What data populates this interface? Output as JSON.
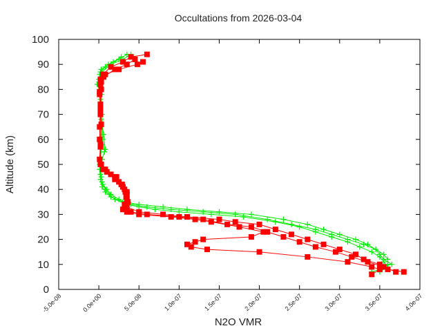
{
  "chart_data": {
    "type": "scatter",
    "title": "Occultations from 2026-03-04",
    "xlabel": "N2O VMR",
    "ylabel": "Altitude (km)",
    "xlim": [
      -5e-08,
      4e-07
    ],
    "ylim": [
      0,
      100
    ],
    "xticks": [
      "-5.0e-08",
      "0.0e+00",
      "5.0e-08",
      "1.0e-07",
      "1.5e-07",
      "2.0e-07",
      "2.5e-07",
      "3.0e-07",
      "3.5e-07",
      "4.0e-07"
    ],
    "xtick_values": [
      -5e-08,
      0,
      5e-08,
      1e-07,
      1.5e-07,
      2e-07,
      2.5e-07,
      3e-07,
      3.5e-07,
      4e-07
    ],
    "yticks": [
      "0",
      "10",
      "20",
      "30",
      "40",
      "50",
      "60",
      "70",
      "80",
      "90",
      "100"
    ],
    "ytick_values": [
      0,
      10,
      20,
      30,
      40,
      50,
      60,
      70,
      80,
      90,
      100
    ],
    "grid": false,
    "legend": "none",
    "colors": {
      "green": "#00ee00",
      "red": "#ff0000"
    },
    "series": [
      {
        "marker": "plus",
        "color": "#00ee00",
        "altitude": [
          94,
          92,
          90,
          88,
          86,
          82,
          78,
          70,
          60,
          55,
          50,
          45,
          42,
          40,
          38,
          36,
          34,
          33,
          32,
          31,
          30,
          28,
          26,
          24,
          22,
          20,
          18,
          16,
          14,
          12,
          10,
          8,
          7
        ],
        "vmr": [
          3.5e-08,
          2.5e-08,
          1.2e-08,
          3e-09,
          1e-09,
          -2e-09,
          3e-09,
          4e-09,
          5e-09,
          7e-09,
          2e-09,
          3e-09,
          5e-09,
          1e-08,
          1.5e-08,
          2.5e-08,
          4e-08,
          6e-08,
          9e-08,
          1.3e-07,
          1.7e-07,
          2.1e-07,
          2.4e-07,
          2.7e-07,
          2.9e-07,
          3.1e-07,
          3.3e-07,
          3.45e-07,
          3.55e-07,
          3.6e-07,
          3.6e-07,
          3.5e-07,
          3.4e-07
        ]
      },
      {
        "marker": "plus",
        "color": "#00ee00",
        "altitude": [
          93,
          91,
          89,
          87,
          84,
          80,
          75,
          68,
          62,
          56,
          52,
          48,
          44,
          41,
          39,
          37,
          35,
          34,
          33,
          32,
          31,
          30,
          28,
          26,
          24,
          22,
          20,
          18,
          16,
          14,
          12,
          10,
          9
        ],
        "vmr": [
          2.8e-08,
          1.8e-08,
          8e-09,
          2e-09,
          0,
          1e-09,
          2e-09,
          3e-09,
          6e-09,
          8e-09,
          4e-09,
          1e-09,
          2e-09,
          4e-09,
          8e-09,
          1.5e-08,
          3e-08,
          5e-08,
          8e-08,
          1.1e-07,
          1.5e-07,
          1.9e-07,
          2.3e-07,
          2.6e-07,
          2.8e-07,
          3e-07,
          3.2e-07,
          3.35e-07,
          3.45e-07,
          3.5e-07,
          3.55e-07,
          3.65e-07,
          3.5e-07
        ]
      },
      {
        "marker": "plus",
        "color": "#00ee00",
        "altitude": [
          94,
          92,
          90,
          87,
          83,
          76,
          66,
          58,
          50,
          46,
          43,
          40,
          38,
          36,
          34,
          33,
          32,
          31,
          30,
          29,
          27,
          25,
          23,
          21,
          19,
          17,
          15,
          13,
          11,
          9,
          7
        ],
        "vmr": [
          4e-08,
          3e-08,
          1.5e-08,
          4e-09,
          0,
          2e-09,
          3e-09,
          4e-09,
          1e-09,
          2e-09,
          4e-09,
          8e-09,
          1.3e-08,
          2e-08,
          3.5e-08,
          5e-08,
          7e-08,
          1e-07,
          1.4e-07,
          1.8e-07,
          2.2e-07,
          2.5e-07,
          2.7e-07,
          2.9e-07,
          3.1e-07,
          3.25e-07,
          3.4e-07,
          3.5e-07,
          3.55e-07,
          3.6e-07,
          3.5e-07
        ]
      },
      {
        "marker": "square",
        "color": "#ff0000",
        "altitude": [
          94,
          93,
          91,
          89,
          86,
          84,
          80,
          70,
          60,
          50,
          47,
          45,
          43,
          41,
          39,
          36,
          33,
          31,
          30,
          29,
          28,
          27,
          26,
          24,
          22,
          20,
          18,
          16,
          14,
          12,
          10,
          8,
          7
        ],
        "vmr": [
          6e-08,
          4e-08,
          3e-08,
          1.5e-08,
          5e-09,
          2e-09,
          3e-09,
          2e-09,
          1e-09,
          3e-09,
          1e-08,
          2e-08,
          2.5e-08,
          3e-08,
          3.5e-08,
          3.5e-08,
          3.5e-08,
          5e-08,
          8e-08,
          1.1e-07,
          1.5e-07,
          1.7e-07,
          2e-07,
          2.2e-07,
          2.4e-07,
          2.6e-07,
          2.8e-07,
          3e-07,
          3.2e-07,
          3.3e-07,
          3.5e-07,
          3.6e-07,
          3.8e-07
        ]
      },
      {
        "marker": "square",
        "color": "#ff0000",
        "altitude": [
          92,
          90,
          88,
          85,
          82,
          78,
          72,
          65,
          58,
          52,
          48,
          46,
          44,
          42,
          40,
          38,
          35,
          32,
          31,
          30,
          29,
          28,
          26,
          25,
          23,
          21,
          19,
          17,
          15,
          13,
          11,
          9,
          7
        ],
        "vmr": [
          4.5e-08,
          3.5e-08,
          2e-08,
          6e-09,
          2e-09,
          1e-09,
          2e-09,
          1e-09,
          2e-09,
          1e-09,
          5e-09,
          1.5e-08,
          2e-08,
          2.8e-08,
          3.2e-08,
          3.5e-08,
          3.6e-08,
          3.3e-08,
          4e-08,
          6e-08,
          1e-07,
          1.3e-07,
          1.6e-07,
          1.9e-07,
          2.1e-07,
          2.3e-07,
          2.5e-07,
          2.7e-07,
          2.95e-07,
          3.15e-07,
          3.35e-07,
          3.55e-07,
          3.7e-07
        ]
      },
      {
        "marker": "square",
        "color": "#ff0000",
        "altitude": [
          91,
          90,
          88,
          86,
          83,
          79,
          74,
          66,
          57,
          50,
          48,
          45,
          42,
          39,
          37,
          34,
          32,
          31,
          30,
          29,
          28,
          27,
          25,
          23,
          21,
          20,
          19,
          18,
          17,
          16,
          15,
          13,
          11,
          9,
          8,
          6
        ],
        "vmr": [
          5.5e-08,
          4.8e-08,
          2.5e-08,
          8e-09,
          3e-09,
          1e-09,
          2e-09,
          3e-09,
          2e-09,
          2e-09,
          8e-09,
          2.2e-08,
          2.9e-08,
          3.3e-08,
          3.4e-08,
          3.2e-08,
          3e-08,
          3.5e-08,
          5e-08,
          9e-08,
          1.2e-07,
          1.4e-07,
          1.75e-07,
          2.05e-07,
          1.9e-07,
          1.3e-07,
          1.2e-07,
          1.1e-07,
          1.15e-07,
          1.35e-07,
          2e-07,
          2.6e-07,
          3.1e-07,
          3.4e-07,
          3.5e-07,
          3.4e-07
        ]
      }
    ]
  }
}
